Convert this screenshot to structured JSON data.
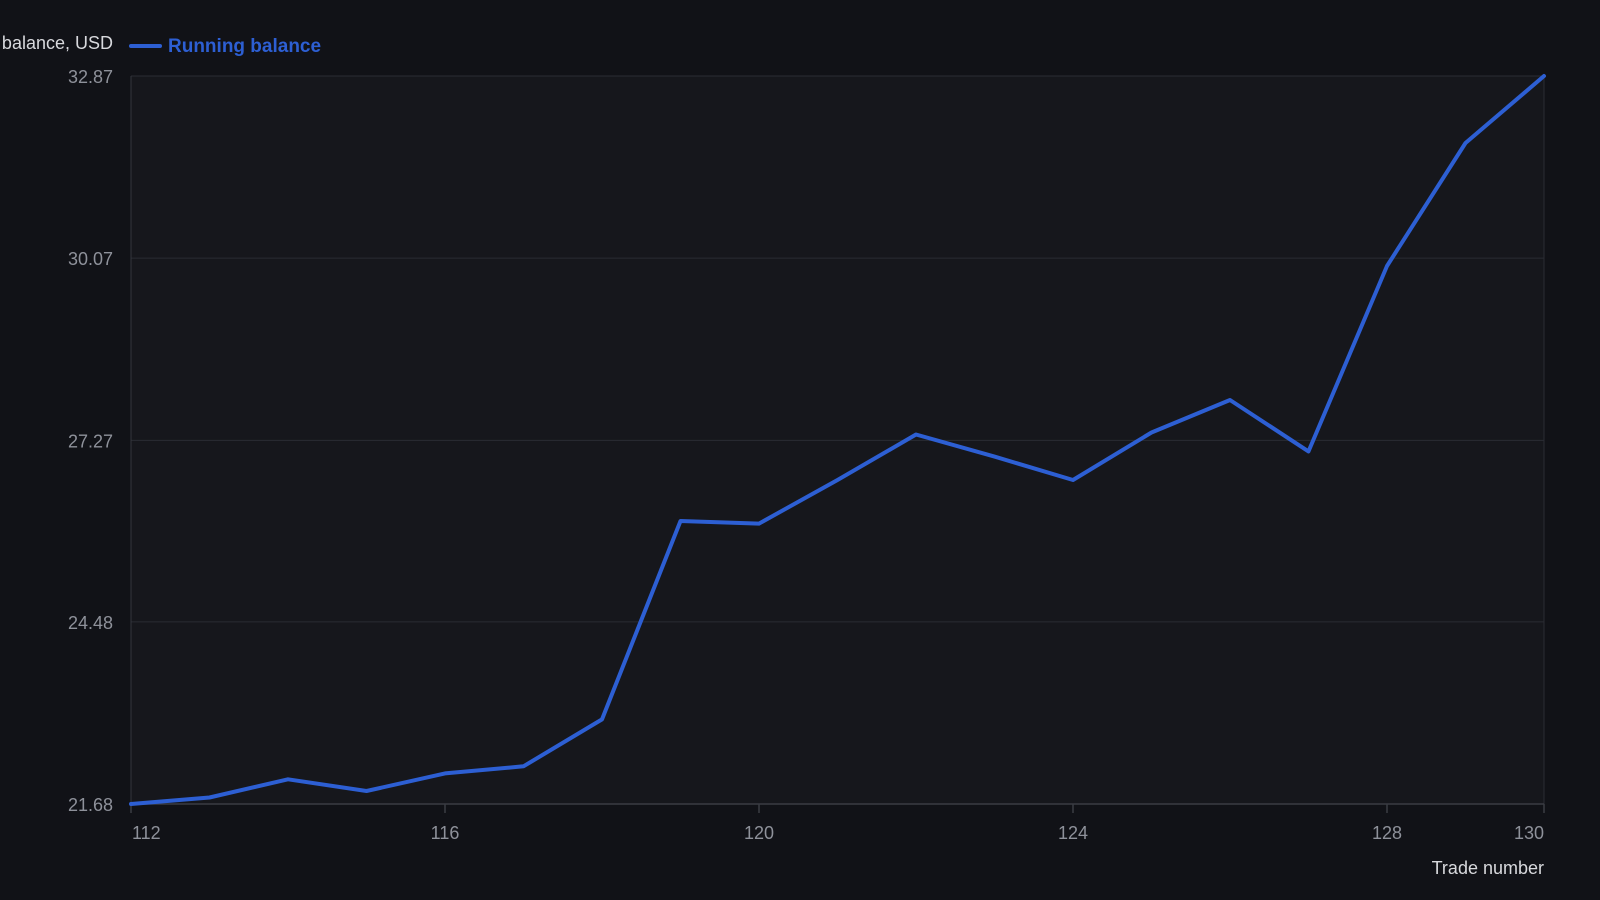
{
  "chart_data": {
    "type": "line",
    "xlabel": "Trade number",
    "ylabel": "Running balance, USD",
    "xlim": [
      112,
      130
    ],
    "ylim": [
      21.68,
      32.87
    ],
    "x_ticks": [
      112,
      116,
      120,
      124,
      128,
      130
    ],
    "y_ticks": [
      21.68,
      24.48,
      27.27,
      30.07,
      32.87
    ],
    "x_tick_labels": [
      "112",
      "116",
      "120",
      "124",
      "128",
      "130"
    ],
    "y_tick_labels": [
      "21.68",
      "24.48",
      "27.27",
      "30.07",
      "32.87"
    ],
    "grid": true,
    "legend_position": "top-left",
    "series": [
      {
        "name": "Running balance",
        "color": "#2d5fd3",
        "x": [
          112,
          113,
          114,
          115,
          116,
          117,
          118,
          119,
          120,
          121,
          122,
          123,
          124,
          125,
          126,
          127,
          128,
          129,
          130
        ],
        "values": [
          21.68,
          21.78,
          22.06,
          21.88,
          22.15,
          22.26,
          22.98,
          26.03,
          25.99,
          26.66,
          27.36,
          27.02,
          26.66,
          27.39,
          27.89,
          27.1,
          29.95,
          31.84,
          32.87
        ]
      }
    ]
  }
}
